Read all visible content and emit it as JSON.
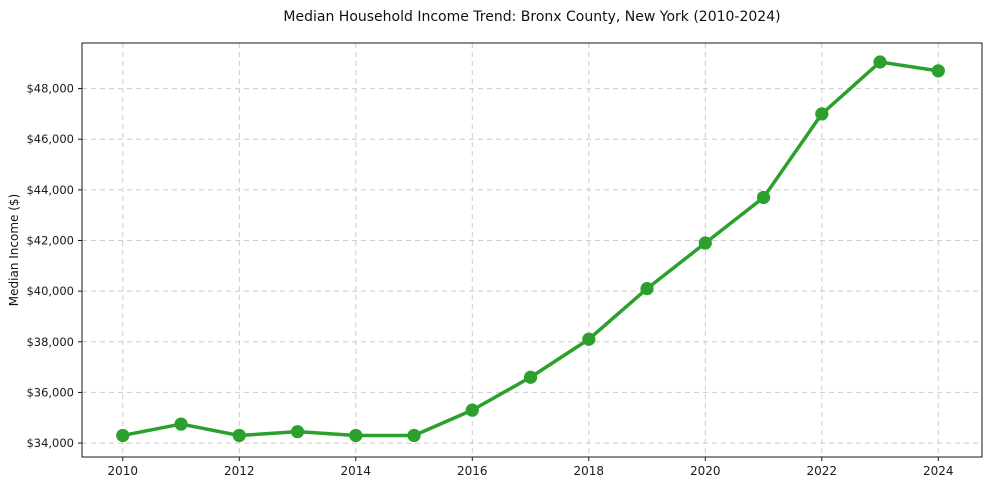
{
  "chart_data": {
    "type": "line",
    "title": "Median Household Income Trend: Bronx County, New York (2010-2024)",
    "xlabel": "",
    "ylabel": "Median Income ($)",
    "series_name": "Median Household Income",
    "x": [
      2010,
      2011,
      2012,
      2013,
      2014,
      2015,
      2016,
      2017,
      2018,
      2019,
      2020,
      2021,
      2022,
      2023,
      2024
    ],
    "values": [
      34300,
      34750,
      34300,
      34450,
      34300,
      34300,
      35300,
      36600,
      38100,
      40100,
      41900,
      43700,
      47000,
      49050,
      48700
    ],
    "xlim": [
      2009.3,
      2024.75
    ],
    "ylim": [
      33450,
      49800
    ],
    "xticks": {
      "values": [
        2010,
        2012,
        2014,
        2016,
        2018,
        2020,
        2022,
        2024
      ],
      "labels": [
        "2010",
        "2012",
        "2014",
        "2016",
        "2018",
        "2020",
        "2022",
        "2024"
      ]
    },
    "yticks": {
      "values": [
        34000,
        36000,
        38000,
        40000,
        42000,
        44000,
        46000,
        48000
      ],
      "labels": [
        "$34,000",
        "$36,000",
        "$38,000",
        "$40,000",
        "$42,000",
        "$44,000",
        "$46,000",
        "$48,000"
      ]
    },
    "grid": true,
    "grid_style": "dashed",
    "legend_position": "none",
    "line_color": "#2ca02c",
    "marker": "circle",
    "grid_color": "#cccccc",
    "axis_color": "#1a1a1a",
    "tick_label_color": "#1a1a1a",
    "background": "#ffffff"
  }
}
